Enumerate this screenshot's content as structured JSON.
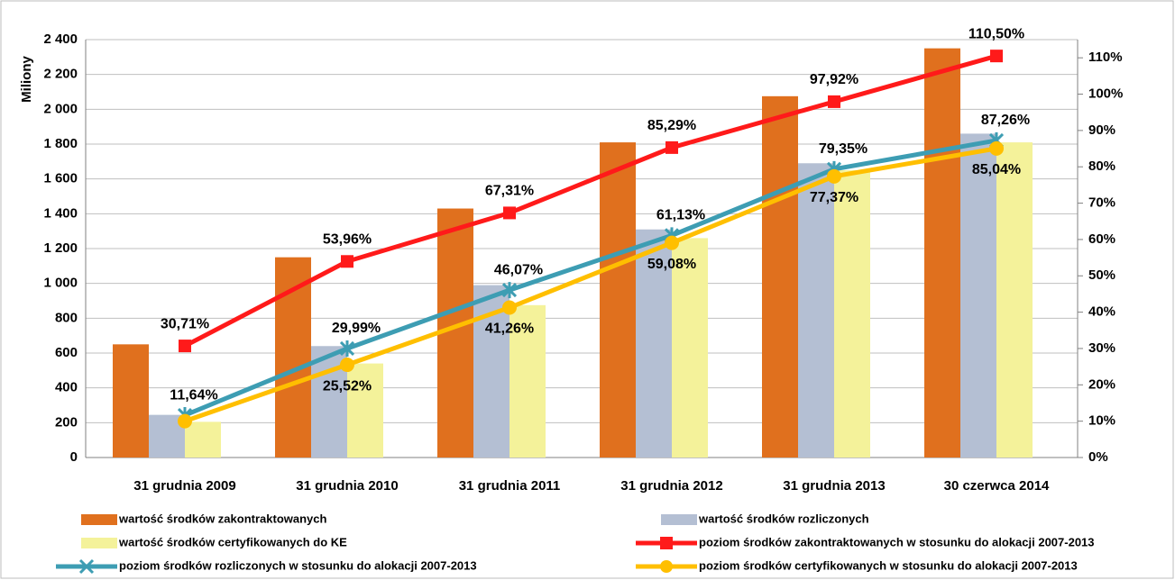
{
  "chart_data": {
    "type": "bar",
    "ylabel": "Miliony",
    "categories": [
      "31 grudnia 2009",
      "31 grudnia 2010",
      "31 grudnia 2011",
      "31 grudnia 2012",
      "31 grudnia 2013",
      "30 czerwca 2014"
    ],
    "ylim": [
      0,
      2400
    ],
    "yticks": [
      0,
      200,
      400,
      600,
      800,
      {
        "value": 1000,
        "label": "1 000"
      },
      {
        "value": 1200,
        "label": "1 200"
      },
      {
        "value": 1400,
        "label": "1 400"
      },
      {
        "value": 1600,
        "label": "1 600"
      },
      {
        "value": 1800,
        "label": "1 800"
      },
      {
        "value": 2000,
        "label": "2 000"
      },
      {
        "value": 2200,
        "label": "2 200"
      },
      {
        "value": 2400,
        "label": "2 400"
      }
    ],
    "y2lim": [
      0,
      115
    ],
    "y2ticks": [
      {
        "value": 0,
        "label": "0%"
      },
      {
        "value": 10,
        "label": "10%"
      },
      {
        "value": 20,
        "label": "20%"
      },
      {
        "value": 30,
        "label": "30%"
      },
      {
        "value": 40,
        "label": "40%"
      },
      {
        "value": 50,
        "label": "50%"
      },
      {
        "value": 60,
        "label": "60%"
      },
      {
        "value": 70,
        "label": "70%"
      },
      {
        "value": 80,
        "label": "80%"
      },
      {
        "value": 90,
        "label": "90%"
      },
      {
        "value": 100,
        "label": "100%"
      },
      {
        "value": 110,
        "label": "110%"
      }
    ],
    "grid": true,
    "legend": "bottom",
    "series": [
      {
        "name": "wartość środków zakontraktowanych",
        "type": "bar",
        "color": "#e0701e",
        "values": [
          650,
          1150,
          1430,
          1810,
          2075,
          2350
        ]
      },
      {
        "name": "wartość środków rozliczonych",
        "type": "bar",
        "color": "#b4bfd3",
        "values": [
          245,
          640,
          990,
          1310,
          1690,
          1860
        ]
      },
      {
        "name": "wartość środków certyfikowanych do KE",
        "type": "bar",
        "color": "#f4f29a",
        "values": [
          205,
          540,
          875,
          1260,
          1650,
          1810
        ]
      },
      {
        "name": "poziom środków zakontraktowanych w stosunku do alokacji 2007-2013",
        "type": "line",
        "axis": "y2",
        "marker": "square",
        "color": "#ff1a1a",
        "values": [
          30.71,
          53.96,
          67.31,
          85.29,
          97.92,
          110.5
        ],
        "value_labels": [
          "30,71%",
          "53,96%",
          "67,31%",
          "85,29%",
          "97,92%",
          "110,50%"
        ]
      },
      {
        "name": "poziom środków rozliczonych w stosunku do alokacji 2007-2013",
        "type": "line",
        "axis": "y2",
        "marker": "star",
        "color": "#3d9db3",
        "values": [
          11.64,
          29.99,
          46.07,
          61.13,
          79.35,
          87.26
        ],
        "value_labels": [
          "11,64%",
          "29,99%",
          "46,07%",
          "61,13%",
          "79,35%",
          "87,26%"
        ]
      },
      {
        "name": "poziom środków certyfikowanych w stosunku do alokacji 2007-2013",
        "type": "line",
        "axis": "y2",
        "marker": "circle",
        "color": "#ffbf00",
        "values": [
          10,
          25.52,
          41.26,
          59.08,
          77.37,
          85.04
        ],
        "value_labels": [
          null,
          "25,52%",
          "41,26%",
          "59,08%",
          "77,37%",
          "85,04%"
        ]
      }
    ]
  }
}
